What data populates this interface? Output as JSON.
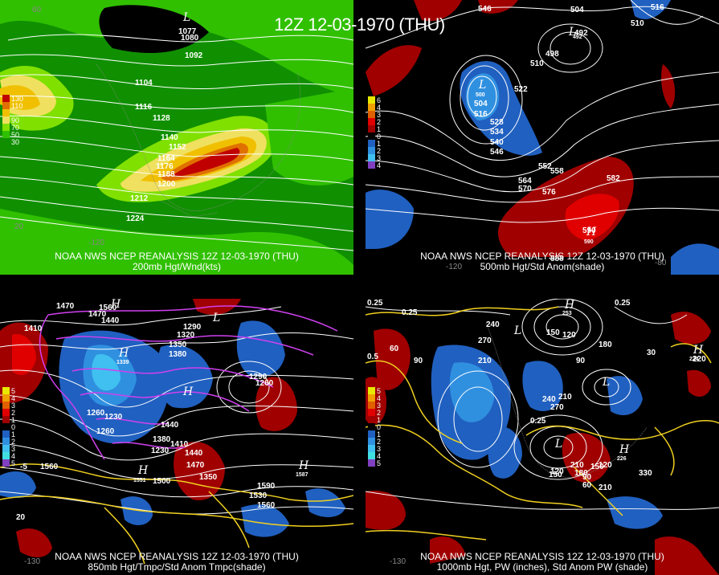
{
  "title": "12Z 12-03-1970 (THU)",
  "panels": [
    {
      "caption1": "NOAA NWS NCEP REANALYSIS 12Z 12-03-1970 (THU)",
      "caption2": "200mb Hgt/Wnd(kts)",
      "legend": [
        {
          "label": "130",
          "color": "#c00000"
        },
        {
          "label": "110",
          "color": "#e07000"
        },
        {
          "label": "",
          "color": "#f0c000"
        },
        {
          "label": "90",
          "color": "#f0e060"
        },
        {
          "label": "70",
          "color": "#80e000"
        },
        {
          "label": "50",
          "color": "#30c000"
        },
        {
          "label": "30",
          "color": "#109000"
        }
      ],
      "contour_labels": [
        "1077",
        "1080",
        "1092",
        "1104",
        "1116",
        "1128",
        "1140",
        "1152",
        "1164",
        "1176",
        "1188",
        "1200",
        "1212",
        "1224"
      ],
      "lon_labels": [
        "-120",
        "20",
        "60"
      ],
      "pressure_centers": [
        {
          "label": "L",
          "value": ""
        }
      ]
    },
    {
      "caption1": "NOAA NWS NCEP REANALYSIS 12Z 12-03-1970 (THU)",
      "caption2": "500mb Hgt/Std Anom(shade)",
      "legend": [
        {
          "label": "6",
          "color": "#e8e800"
        },
        {
          "label": "4",
          "color": "#f0a000"
        },
        {
          "label": "3",
          "color": "#e06000"
        },
        {
          "label": "2",
          "color": "#e00000"
        },
        {
          "label": "1",
          "color": "#a00000"
        },
        {
          "label": "0",
          "color": "#000000"
        },
        {
          "label": "1",
          "color": "#2060c0"
        },
        {
          "label": "2",
          "color": "#3090e0"
        },
        {
          "label": "3",
          "color": "#40c0f0"
        },
        {
          "label": "4",
          "color": "#8040c0"
        }
      ],
      "contour_labels": [
        "546",
        "504",
        "516",
        "510",
        "498",
        "492",
        "510",
        "522",
        "504",
        "516",
        "528",
        "534",
        "540",
        "546",
        "552",
        "558",
        "564",
        "570",
        "576",
        "582",
        "590",
        "588"
      ],
      "lon_labels": [
        "-120",
        "-80"
      ],
      "pressure_centers": [
        {
          "label": "L",
          "value": "492"
        },
        {
          "label": "L",
          "value": "500"
        },
        {
          "label": "H",
          "value": "590"
        }
      ]
    },
    {
      "caption1": "NOAA NWS NCEP REANALYSIS 12Z 12-03-1970 (THU)",
      "caption2": "850mb Hgt/Tmpc/Std Anom Tmpc(shade)",
      "legend": [
        {
          "label": "5",
          "color": "#e8e800"
        },
        {
          "label": "4",
          "color": "#f0a000"
        },
        {
          "label": "3",
          "color": "#e06000"
        },
        {
          "label": "2",
          "color": "#e00000"
        },
        {
          "label": "1",
          "color": "#a00000"
        },
        {
          "label": "0",
          "color": "#000000"
        },
        {
          "label": "1",
          "color": "#2060c0"
        },
        {
          "label": "2",
          "color": "#3090e0"
        },
        {
          "label": "3",
          "color": "#40c0f0"
        },
        {
          "label": "4",
          "color": "#40e0e0"
        },
        {
          "label": "5",
          "color": "#8040c0"
        }
      ],
      "contour_labels": [
        "1470",
        "1560",
        "1470",
        "1440",
        "1410",
        "1290",
        "1320",
        "1350",
        "1380",
        "1260",
        "1230",
        "1290",
        "1260",
        "1440",
        "1410",
        "1230",
        "1260",
        "1380",
        "1440",
        "1470",
        "1350",
        "1560",
        "1590",
        "1530",
        "1560",
        "1500",
        "-5",
        "20"
      ],
      "lon_labels": [
        "-130"
      ],
      "pressure_centers": [
        {
          "label": "H",
          "value": ""
        },
        {
          "label": "H",
          "value": "1339"
        },
        {
          "label": "H",
          "value": ""
        },
        {
          "label": "H",
          "value": "1587"
        },
        {
          "label": "H",
          "value": "1551"
        },
        {
          "label": "L",
          "value": ""
        }
      ]
    },
    {
      "caption1": "NOAA NWS NCEP REANALYSIS 12Z 12-03-1970 (THU)",
      "caption2": "1000mb Hgt, PW (inches), Std Anom PW (shade)",
      "legend": [
        {
          "label": "5",
          "color": "#e8e800"
        },
        {
          "label": "4",
          "color": "#f0a000"
        },
        {
          "label": "3",
          "color": "#e06000"
        },
        {
          "label": "2",
          "color": "#e00000"
        },
        {
          "label": "1",
          "color": "#a00000"
        },
        {
          "label": "0",
          "color": "#000000"
        },
        {
          "label": "1",
          "color": "#2060c0"
        },
        {
          "label": "2",
          "color": "#3090e0"
        },
        {
          "label": "3",
          "color": "#40c0f0"
        },
        {
          "label": "4",
          "color": "#40e0e0"
        },
        {
          "label": "5",
          "color": "#8040c0"
        }
      ],
      "contour_labels": [
        "0.25",
        "0.25",
        "0.5",
        "60",
        "90",
        "240",
        "270",
        "150",
        "120",
        "210",
        "180",
        "90",
        "30",
        "240",
        "270",
        "210",
        "0.25",
        "120",
        "150",
        "180",
        "210",
        "150",
        "90",
        "120",
        "60",
        "210",
        "330",
        "0.25",
        "220"
      ],
      "lon_labels": [
        "-130"
      ],
      "pressure_centers": [
        {
          "label": "H",
          "value": "253"
        },
        {
          "label": "L",
          "value": ""
        },
        {
          "label": "L",
          "value": "-"
        },
        {
          "label": "H",
          "value": "224"
        },
        {
          "label": "L",
          "value": ""
        },
        {
          "label": "H",
          "value": "226"
        }
      ]
    }
  ]
}
